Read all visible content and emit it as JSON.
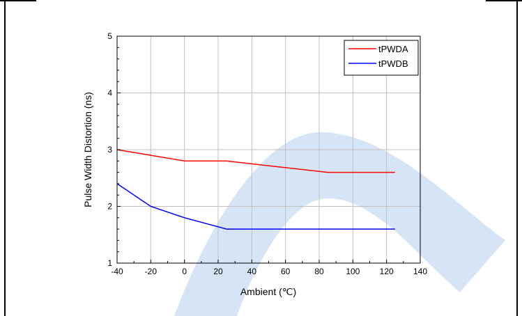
{
  "chart_data": {
    "type": "line",
    "xlabel": "Ambient (℃)",
    "ylabel": "Pulse Width Distortion (ns)",
    "xlim": [
      -40,
      140
    ],
    "ylim": [
      1,
      5
    ],
    "x_ticks": [
      "-40",
      "-20",
      "0",
      "20",
      "40",
      "60",
      "80",
      "100",
      "120",
      "140"
    ],
    "y_ticks": [
      "1",
      "2",
      "3",
      "4",
      "5"
    ],
    "grid": true,
    "legend_position": "top-right",
    "series": [
      {
        "name": "tPWDA",
        "color": "#ff0000",
        "x": [
          -40,
          0,
          25,
          85,
          125
        ],
        "y": [
          3.0,
          2.8,
          2.8,
          2.6,
          2.6
        ]
      },
      {
        "name": "tPWDB",
        "color": "#0000ff",
        "x": [
          -40,
          -20,
          0,
          25,
          85,
          125
        ],
        "y": [
          2.4,
          2.0,
          1.8,
          1.6,
          1.6,
          1.6
        ]
      }
    ]
  },
  "colors": {
    "watermark": "#cfe0f4",
    "grid": "#c0c0c0",
    "axis": "#000000"
  }
}
